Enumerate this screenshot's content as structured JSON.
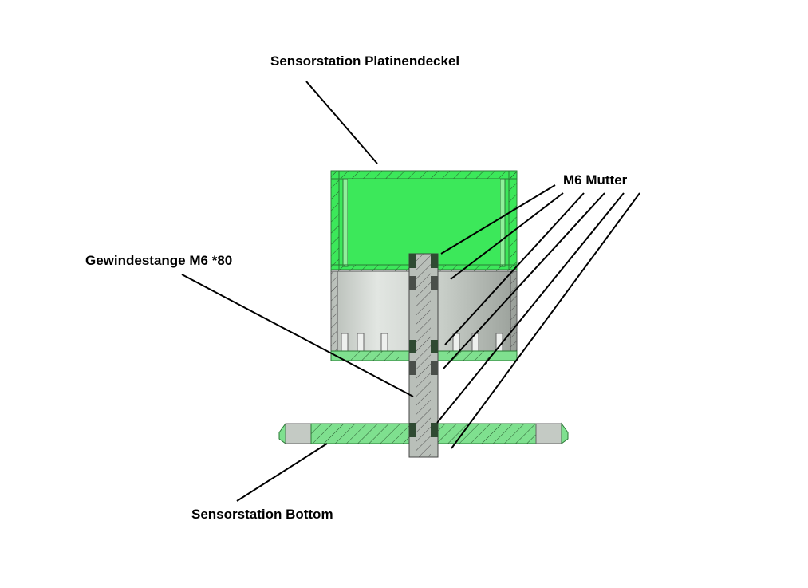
{
  "labels": {
    "platinendeckel": "Sensorstation Platinendeckel",
    "mutter": "M6 Mutter",
    "gewindestange": "Gewindestange M6 *80",
    "bottom": "Sensorstation Bottom"
  },
  "colors": {
    "lid_fill": "#3ce85a",
    "lid_light": "#8ff09a",
    "body_gray": "#c6cdc6",
    "base_green": "#7fe08f",
    "rod_gray": "#b9bfb9",
    "nut_dark": "#2f4a32",
    "line": "#000000"
  }
}
